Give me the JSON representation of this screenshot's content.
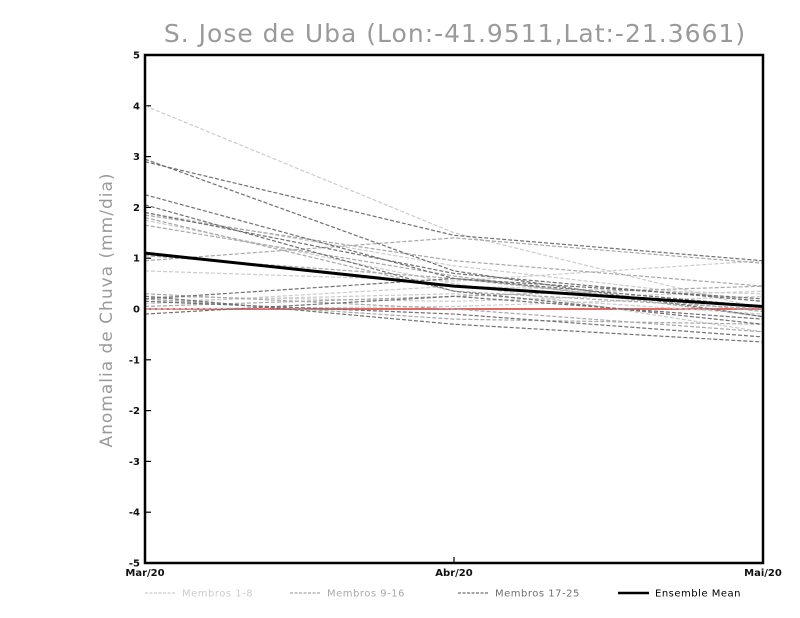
{
  "chart_data": {
    "type": "line",
    "title": "S. Jose de Uba (Lon:-41.9511,Lat:-21.3661)",
    "xlabel": "",
    "ylabel": "Anomalia de Chuva (mm/dia)",
    "categories": [
      "Mar/20",
      "Abr/20",
      "Mai/20"
    ],
    "ylim": [
      -5,
      5
    ],
    "yticks": [
      -5,
      -4,
      -3,
      -2,
      -1,
      0,
      1,
      2,
      3,
      4,
      5
    ],
    "grid": false,
    "legend_position": "bottom",
    "reference_line": {
      "value": 0,
      "color": "#e05050"
    },
    "legend": [
      {
        "label": "Membros 1-8",
        "color": "#cccccc",
        "style": "dashed"
      },
      {
        "label": "Membros 9-16",
        "color": "#a8a8a8",
        "style": "dashed"
      },
      {
        "label": "Membros 17-25",
        "color": "#707070",
        "style": "dashed"
      },
      {
        "label": "Ensemble Mean",
        "color": "#000000",
        "style": "solid"
      }
    ],
    "series": [
      {
        "group": 0,
        "values": [
          4.0,
          1.5,
          0.0
        ]
      },
      {
        "group": 0,
        "values": [
          0.75,
          0.55,
          0.95
        ]
      },
      {
        "group": 0,
        "values": [
          1.75,
          0.5,
          -0.45
        ]
      },
      {
        "group": 0,
        "values": [
          0.25,
          0.15,
          0.35
        ]
      },
      {
        "group": 0,
        "values": [
          0.1,
          0.45,
          0.3
        ]
      },
      {
        "group": 0,
        "values": [
          1.9,
          0.85,
          0.15
        ]
      },
      {
        "group": 0,
        "values": [
          0.0,
          0.05,
          0.25
        ]
      },
      {
        "group": 0,
        "values": [
          0.15,
          0.3,
          -0.1
        ]
      },
      {
        "group": 1,
        "values": [
          1.85,
          0.95,
          0.45
        ]
      },
      {
        "group": 1,
        "values": [
          1.65,
          0.65,
          -0.15
        ]
      },
      {
        "group": 1,
        "values": [
          0.2,
          -0.2,
          -0.3
        ]
      },
      {
        "group": 1,
        "values": [
          1.05,
          0.6,
          -0.05
        ]
      },
      {
        "group": 1,
        "values": [
          0.3,
          0.0,
          -0.45
        ]
      },
      {
        "group": 1,
        "values": [
          1.8,
          0.35,
          0.0
        ]
      },
      {
        "group": 1,
        "values": [
          0.05,
          0.25,
          0.45
        ]
      },
      {
        "group": 1,
        "values": [
          0.95,
          1.4,
          0.9
        ]
      },
      {
        "group": 2,
        "values": [
          2.9,
          1.45,
          0.95
        ]
      },
      {
        "group": 2,
        "values": [
          2.95,
          0.75,
          -0.15
        ]
      },
      {
        "group": 2,
        "values": [
          2.25,
          0.6,
          0.05
        ]
      },
      {
        "group": 2,
        "values": [
          2.05,
          0.35,
          -0.3
        ]
      },
      {
        "group": 2,
        "values": [
          0.2,
          0.6,
          0.2
        ]
      },
      {
        "group": 2,
        "values": [
          0.25,
          -0.3,
          -0.65
        ]
      },
      {
        "group": 2,
        "values": [
          -0.1,
          0.25,
          -0.2
        ]
      },
      {
        "group": 2,
        "values": [
          0.15,
          -0.1,
          -0.55
        ]
      },
      {
        "group": 2,
        "values": [
          1.9,
          0.7,
          0.15
        ]
      },
      {
        "group": 3,
        "values": [
          1.1,
          0.45,
          0.05
        ]
      }
    ]
  }
}
